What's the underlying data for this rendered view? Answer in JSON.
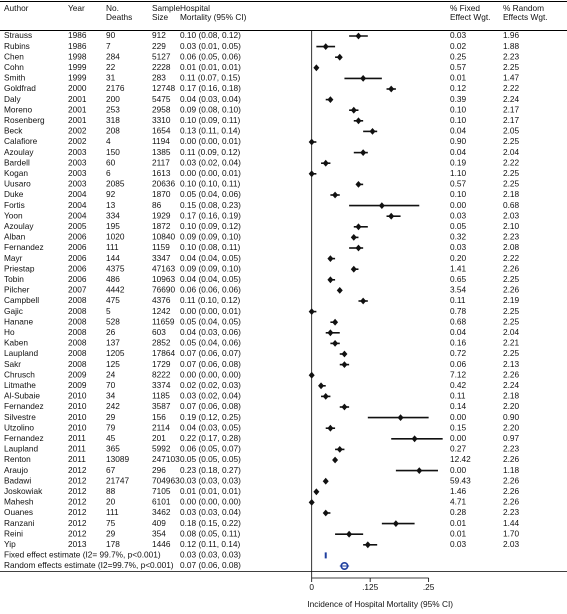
{
  "chart_data": {
    "type": "forest",
    "headers": {
      "author": [
        "Author"
      ],
      "year": [
        "Year"
      ],
      "deaths": [
        "No.",
        "Deaths"
      ],
      "sample": [
        "Sample",
        "Size"
      ],
      "mortality": [
        "Hospital",
        "Mortality (95% CI)"
      ],
      "fixed": [
        "% Fixed",
        "Effect Wgt."
      ],
      "random": [
        "% Random",
        "Effects Wgt."
      ]
    },
    "x_label": "Incidence of Hospital Mortality (95% CI)",
    "xlim": [
      -0.025,
      0.285
    ],
    "xticks": [
      0,
      {
        "value": 0.125,
        "label": ".125"
      },
      {
        "value": 0.25,
        "label": ".25"
      }
    ],
    "color": "#111111",
    "summary_color": "#1f3f9f",
    "rows": [
      {
        "author": "Strauss",
        "year": 1986,
        "deaths": 90,
        "sample": 912,
        "est": 0.1,
        "lo": 0.08,
        "hi": 0.12,
        "label": "0.10 (0.08, 0.12)",
        "fixed": "0.03",
        "random": "1.96"
      },
      {
        "author": "Rubins",
        "year": 1986,
        "deaths": 7,
        "sample": 229,
        "est": 0.03,
        "lo": 0.01,
        "hi": 0.05,
        "label": "0.03 (0.01, 0.05)",
        "fixed": "0.02",
        "random": "1.88"
      },
      {
        "author": "Chen",
        "year": 1998,
        "deaths": 284,
        "sample": 5127,
        "est": 0.06,
        "lo": 0.05,
        "hi": 0.06,
        "label": "0.06 (0.05, 0.06)",
        "fixed": "0.25",
        "random": "2.23"
      },
      {
        "author": "Cohn",
        "year": 1999,
        "deaths": 22,
        "sample": 2228,
        "est": 0.01,
        "lo": 0.01,
        "hi": 0.01,
        "label": "0.01 (0.01, 0.01)",
        "fixed": "0.57",
        "random": "2.25"
      },
      {
        "author": "Smith",
        "year": 1999,
        "deaths": 31,
        "sample": 283,
        "est": 0.11,
        "lo": 0.07,
        "hi": 0.15,
        "label": "0.11 (0.07, 0.15)",
        "fixed": "0.01",
        "random": "1.47"
      },
      {
        "author": "Goldfrad",
        "year": 2000,
        "deaths": 2176,
        "sample": 12748,
        "est": 0.17,
        "lo": 0.16,
        "hi": 0.18,
        "label": "0.17 (0.16, 0.18)",
        "fixed": "0.12",
        "random": "2.22"
      },
      {
        "author": "Daly",
        "year": 2001,
        "deaths": 200,
        "sample": 5475,
        "est": 0.04,
        "lo": 0.03,
        "hi": 0.04,
        "label": "0.04 (0.03, 0.04)",
        "fixed": "0.39",
        "random": "2.24"
      },
      {
        "author": "Moreno",
        "year": 2001,
        "deaths": 253,
        "sample": 2958,
        "est": 0.09,
        "lo": 0.08,
        "hi": 0.1,
        "label": "0.09 (0.08, 0.10)",
        "fixed": "0.10",
        "random": "2.17"
      },
      {
        "author": "Rosenberg",
        "year": 2001,
        "deaths": 318,
        "sample": 3310,
        "est": 0.1,
        "lo": 0.09,
        "hi": 0.11,
        "label": "0.10 (0.09, 0.11)",
        "fixed": "0.10",
        "random": "2.17"
      },
      {
        "author": "Beck",
        "year": 2002,
        "deaths": 208,
        "sample": 1654,
        "est": 0.13,
        "lo": 0.11,
        "hi": 0.14,
        "label": "0.13 (0.11, 0.14)",
        "fixed": "0.04",
        "random": "2.05"
      },
      {
        "author": "Calafiore",
        "year": 2002,
        "deaths": 4,
        "sample": 1194,
        "est": 0.0,
        "lo": 0.0,
        "hi": 0.01,
        "label": "0.00 (0.00, 0.01)",
        "fixed": "0.90",
        "random": "2.25"
      },
      {
        "author": "Azoulay",
        "year": 2003,
        "deaths": 150,
        "sample": 1385,
        "est": 0.11,
        "lo": 0.09,
        "hi": 0.12,
        "label": "0.11 (0.09, 0.12)",
        "fixed": "0.04",
        "random": "2.04"
      },
      {
        "author": "Bardell",
        "year": 2003,
        "deaths": 60,
        "sample": 2117,
        "est": 0.03,
        "lo": 0.02,
        "hi": 0.04,
        "label": "0.03 (0.02, 0.04)",
        "fixed": "0.19",
        "random": "2.22"
      },
      {
        "author": "Kogan",
        "year": 2003,
        "deaths": 6,
        "sample": 1613,
        "est": 0.0,
        "lo": 0.0,
        "hi": 0.01,
        "label": "0.00 (0.00, 0.01)",
        "fixed": "1.10",
        "random": "2.25"
      },
      {
        "author": "Uusaro",
        "year": 2003,
        "deaths": 2085,
        "sample": 20636,
        "est": 0.1,
        "lo": 0.1,
        "hi": 0.11,
        "label": "0.10 (0.10, 0.11)",
        "fixed": "0.57",
        "random": "2.25"
      },
      {
        "author": "Duke",
        "year": 2004,
        "deaths": 92,
        "sample": 1870,
        "est": 0.05,
        "lo": 0.04,
        "hi": 0.06,
        "label": "0.05 (0.04, 0.06)",
        "fixed": "0.10",
        "random": "2.18"
      },
      {
        "author": "Fortis",
        "year": 2004,
        "deaths": 13,
        "sample": 86,
        "est": 0.15,
        "lo": 0.08,
        "hi": 0.23,
        "label": "0.15 (0.08, 0.23)",
        "fixed": "0.00",
        "random": "0.68"
      },
      {
        "author": "Yoon",
        "year": 2004,
        "deaths": 334,
        "sample": 1929,
        "est": 0.17,
        "lo": 0.16,
        "hi": 0.19,
        "label": "0.17 (0.16, 0.19)",
        "fixed": "0.03",
        "random": "2.03"
      },
      {
        "author": "Azoulay",
        "year": 2005,
        "deaths": 195,
        "sample": 1872,
        "est": 0.1,
        "lo": 0.09,
        "hi": 0.12,
        "label": "0.10 (0.09, 0.12)",
        "fixed": "0.05",
        "random": "2.10"
      },
      {
        "author": "Alban",
        "year": 2006,
        "deaths": 1020,
        "sample": 10840,
        "est": 0.09,
        "lo": 0.09,
        "hi": 0.1,
        "label": "0.09 (0.09, 0.10)",
        "fixed": "0.32",
        "random": "2.23"
      },
      {
        "author": "Fernandez",
        "year": 2006,
        "deaths": 111,
        "sample": 1159,
        "est": 0.1,
        "lo": 0.08,
        "hi": 0.11,
        "label": "0.10 (0.08, 0.11)",
        "fixed": "0.03",
        "random": "2.08"
      },
      {
        "author": "Mayr",
        "year": 2006,
        "deaths": 144,
        "sample": 3347,
        "est": 0.04,
        "lo": 0.04,
        "hi": 0.05,
        "label": "0.04 (0.04, 0.05)",
        "fixed": "0.20",
        "random": "2.22"
      },
      {
        "author": "Priestap",
        "year": 2006,
        "deaths": 4375,
        "sample": 47163,
        "est": 0.09,
        "lo": 0.09,
        "hi": 0.1,
        "label": "0.09 (0.09, 0.10)",
        "fixed": "1.41",
        "random": "2.26"
      },
      {
        "author": "Tobin",
        "year": 2006,
        "deaths": 486,
        "sample": 10963,
        "est": 0.04,
        "lo": 0.04,
        "hi": 0.05,
        "label": "0.04 (0.04, 0.05)",
        "fixed": "0.65",
        "random": "2.25"
      },
      {
        "author": "Pilcher",
        "year": 2007,
        "deaths": 4442,
        "sample": 76690,
        "est": 0.06,
        "lo": 0.06,
        "hi": 0.06,
        "label": "0.06 (0.06, 0.06)",
        "fixed": "3.54",
        "random": "2.26"
      },
      {
        "author": "Campbell",
        "year": 2008,
        "deaths": 475,
        "sample": 4376,
        "est": 0.11,
        "lo": 0.1,
        "hi": 0.12,
        "label": "0.11 (0.10, 0.12)",
        "fixed": "0.11",
        "random": "2.19"
      },
      {
        "author": "Gajic",
        "year": 2008,
        "deaths": 5,
        "sample": 1242,
        "est": 0.0,
        "lo": 0.0,
        "hi": 0.01,
        "label": "0.00 (0.00, 0.01)",
        "fixed": "0.78",
        "random": "2.25"
      },
      {
        "author": "Hanane",
        "year": 2008,
        "deaths": 528,
        "sample": 11659,
        "est": 0.05,
        "lo": 0.04,
        "hi": 0.05,
        "label": "0.05 (0.04, 0.05)",
        "fixed": "0.68",
        "random": "2.25"
      },
      {
        "author": "Ho",
        "year": 2008,
        "deaths": 26,
        "sample": 603,
        "est": 0.04,
        "lo": 0.03,
        "hi": 0.06,
        "label": "0.04 (0.03, 0.06)",
        "fixed": "0.04",
        "random": "2.04"
      },
      {
        "author": "Kaben",
        "year": 2008,
        "deaths": 137,
        "sample": 2852,
        "est": 0.05,
        "lo": 0.04,
        "hi": 0.06,
        "label": "0.05 (0.04, 0.06)",
        "fixed": "0.16",
        "random": "2.21"
      },
      {
        "author": "Laupland",
        "year": 2008,
        "deaths": 1205,
        "sample": 17864,
        "est": 0.07,
        "lo": 0.06,
        "hi": 0.07,
        "label": "0.07 (0.06, 0.07)",
        "fixed": "0.72",
        "random": "2.25"
      },
      {
        "author": "Sakr",
        "year": 2008,
        "deaths": 125,
        "sample": 1729,
        "est": 0.07,
        "lo": 0.06,
        "hi": 0.08,
        "label": "0.07 (0.06, 0.08)",
        "fixed": "0.06",
        "random": "2.13"
      },
      {
        "author": "Chrusch",
        "year": 2009,
        "deaths": 24,
        "sample": 8222,
        "est": 0.0,
        "lo": 0.0,
        "hi": 0.0,
        "label": "0.00 (0.00, 0.00)",
        "fixed": "7.12",
        "random": "2.26"
      },
      {
        "author": "Litmathe",
        "year": 2009,
        "deaths": 70,
        "sample": 3374,
        "est": 0.02,
        "lo": 0.02,
        "hi": 0.03,
        "label": "0.02 (0.02, 0.03)",
        "fixed": "0.42",
        "random": "2.24"
      },
      {
        "author": "Al-Subaie",
        "year": 2010,
        "deaths": 34,
        "sample": 1185,
        "est": 0.03,
        "lo": 0.02,
        "hi": 0.04,
        "label": "0.03 (0.02, 0.04)",
        "fixed": "0.11",
        "random": "2.18"
      },
      {
        "author": "Fernandez",
        "year": 2010,
        "deaths": 242,
        "sample": 3587,
        "est": 0.07,
        "lo": 0.06,
        "hi": 0.08,
        "label": "0.07 (0.06, 0.08)",
        "fixed": "0.14",
        "random": "2.20"
      },
      {
        "author": "Silvestre",
        "year": 2010,
        "deaths": 29,
        "sample": 156,
        "est": 0.19,
        "lo": 0.12,
        "hi": 0.25,
        "label": "0.19 (0.12, 0.25)",
        "fixed": "0.00",
        "random": "0.90"
      },
      {
        "author": "Utzolino",
        "year": 2010,
        "deaths": 79,
        "sample": 2114,
        "est": 0.04,
        "lo": 0.03,
        "hi": 0.05,
        "label": "0.04 (0.03, 0.05)",
        "fixed": "0.15",
        "random": "2.20"
      },
      {
        "author": "Fernandez",
        "year": 2011,
        "deaths": 45,
        "sample": 201,
        "est": 0.22,
        "lo": 0.17,
        "hi": 0.28,
        "label": "0.22 (0.17, 0.28)",
        "fixed": "0.00",
        "random": "0.97"
      },
      {
        "author": "Laupland",
        "year": 2011,
        "deaths": 365,
        "sample": 5992,
        "est": 0.06,
        "lo": 0.05,
        "hi": 0.07,
        "label": "0.06 (0.05, 0.07)",
        "fixed": "0.27",
        "random": "2.23"
      },
      {
        "author": "Renton",
        "year": 2011,
        "deaths": 13089,
        "sample": 247103,
        "est": 0.05,
        "lo": 0.05,
        "hi": 0.05,
        "label": "0.05 (0.05, 0.05)",
        "fixed": "12.42",
        "random": "2.26"
      },
      {
        "author": "Araujo",
        "year": 2012,
        "deaths": 67,
        "sample": 296,
        "est": 0.23,
        "lo": 0.18,
        "hi": 0.27,
        "label": "0.23 (0.18, 0.27)",
        "fixed": "0.00",
        "random": "1.18"
      },
      {
        "author": "Badawi",
        "year": 2012,
        "deaths": 21747,
        "sample": 704963,
        "est": 0.03,
        "lo": 0.03,
        "hi": 0.03,
        "label": "0.03 (0.03, 0.03)",
        "fixed": "59.43",
        "random": "2.26"
      },
      {
        "author": "Joskowiak",
        "year": 2012,
        "deaths": 88,
        "sample": 7105,
        "est": 0.01,
        "lo": 0.01,
        "hi": 0.01,
        "label": "0.01 (0.01, 0.01)",
        "fixed": "1.46",
        "random": "2.26"
      },
      {
        "author": "Mahesh",
        "year": 2012,
        "deaths": 20,
        "sample": 6101,
        "est": 0.0,
        "lo": 0.0,
        "hi": 0.0,
        "label": "0.00 (0.00, 0.00)",
        "fixed": "4.71",
        "random": "2.26"
      },
      {
        "author": "Ouanes",
        "year": 2012,
        "deaths": 111,
        "sample": 3462,
        "est": 0.03,
        "lo": 0.03,
        "hi": 0.04,
        "label": "0.03 (0.03, 0.04)",
        "fixed": "0.28",
        "random": "2.23"
      },
      {
        "author": "Ranzani",
        "year": 2012,
        "deaths": 75,
        "sample": 409,
        "est": 0.18,
        "lo": 0.15,
        "hi": 0.22,
        "label": "0.18 (0.15, 0.22)",
        "fixed": "0.01",
        "random": "1.44"
      },
      {
        "author": "Reini",
        "year": 2012,
        "deaths": 29,
        "sample": 354,
        "est": 0.08,
        "lo": 0.05,
        "hi": 0.11,
        "label": "0.08 (0.05, 0.11)",
        "fixed": "0.01",
        "random": "1.70"
      },
      {
        "author": "Yip",
        "year": 2013,
        "deaths": 178,
        "sample": 1446,
        "est": 0.12,
        "lo": 0.11,
        "hi": 0.14,
        "label": "0.12 (0.11, 0.14)",
        "fixed": "0.03",
        "random": "2.03"
      }
    ],
    "summaries": [
      {
        "name": "Fixed effect estimate (I2= 99.7%, p<0.001)",
        "est": 0.03,
        "lo": 0.03,
        "hi": 0.03,
        "label": "0.03 (0.03, 0.03)",
        "shape": "rect"
      },
      {
        "name": "Random effects estimate (I2=99.7%, p<0.001)",
        "est": 0.07,
        "lo": 0.06,
        "hi": 0.08,
        "label": "0.07 (0.06, 0.08)",
        "shape": "circle"
      }
    ]
  }
}
